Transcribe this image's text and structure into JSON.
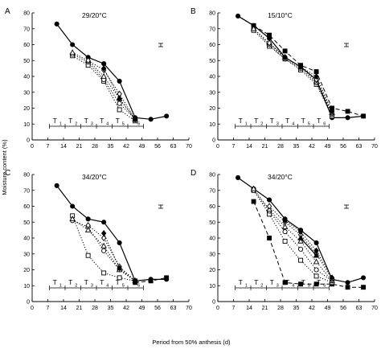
{
  "figure": {
    "ylabel": "Moisture content (%)",
    "xlabel": "Period from 50% anthesis (d)"
  },
  "treatment_labels": [
    "T",
    "T",
    "T",
    "T",
    "T",
    "T"
  ],
  "treatment_subscripts": [
    "1",
    "2",
    "3",
    "4",
    "5",
    "6"
  ],
  "chart_data": [
    {
      "type": "line",
      "panel_letter": "A",
      "title": "29/20°C",
      "xlabel": "Period from 50% anthesis (d)",
      "ylabel": "Moisture content (%)",
      "xlim": [
        0,
        70
      ],
      "ylim": [
        0,
        80
      ],
      "xticks": [
        0,
        7,
        14,
        21,
        28,
        35,
        42,
        49,
        56,
        63,
        70
      ],
      "yticks": [
        0,
        10,
        20,
        30,
        40,
        50,
        60,
        70,
        80
      ],
      "series": [
        {
          "style": "solid-filled-circle",
          "x": [
            11,
            18,
            25,
            32,
            39,
            46,
            53,
            60
          ],
          "y": [
            73,
            60,
            52,
            48,
            37,
            14,
            13,
            15
          ]
        },
        {
          "style": "dotted-open-square",
          "x": [
            18,
            25,
            32,
            39,
            46
          ],
          "y": [
            53,
            47,
            37,
            19,
            12
          ]
        },
        {
          "style": "dotted-open-circle",
          "x": [
            18,
            25,
            32,
            39,
            46
          ],
          "y": [
            54,
            49,
            38,
            23,
            13
          ]
        },
        {
          "style": "dotted-open-triangle",
          "x": [
            18,
            25,
            32,
            39,
            46
          ],
          "y": [
            55,
            50,
            40,
            26,
            13
          ]
        },
        {
          "style": "dotted-open-diamond",
          "x": [
            25,
            32,
            39,
            46
          ],
          "y": [
            50,
            44,
            29,
            13
          ]
        },
        {
          "style": "dotted-filled-diamond",
          "x": [
            32,
            39,
            46
          ],
          "y": [
            45,
            26,
            13
          ]
        },
        {
          "style": "dashed-filled-square",
          "x": [
            46
          ],
          "y": [
            13
          ]
        }
      ]
    },
    {
      "type": "line",
      "panel_letter": "B",
      "title": "15/10°C",
      "xlim": [
        0,
        70
      ],
      "ylim": [
        0,
        80
      ],
      "xticks": [
        0,
        7,
        14,
        21,
        28,
        35,
        42,
        49,
        56,
        63,
        70
      ],
      "yticks": [
        0,
        10,
        20,
        30,
        40,
        50,
        60,
        70,
        80
      ],
      "series": [
        {
          "style": "solid-filled-circle",
          "x": [
            9,
            16,
            23,
            30,
            37,
            44,
            51,
            58,
            65
          ],
          "y": [
            78,
            72,
            64,
            52,
            46,
            38,
            14,
            14,
            15
          ]
        },
        {
          "style": "dashed-filled-square",
          "x": [
            16,
            23,
            30,
            37,
            44,
            51,
            58,
            65
          ],
          "y": [
            72,
            66,
            56,
            47,
            43,
            20,
            18,
            15
          ]
        },
        {
          "style": "dotted-open-square",
          "x": [
            16,
            23,
            30,
            37,
            44,
            51
          ],
          "y": [
            69,
            59,
            51,
            44,
            35,
            15
          ]
        },
        {
          "style": "dotted-open-circle",
          "x": [
            16,
            23,
            30,
            37,
            44,
            51
          ],
          "y": [
            70,
            60,
            51,
            45,
            36,
            16
          ]
        },
        {
          "style": "dotted-open-triangle",
          "x": [
            16,
            23,
            30,
            37,
            44,
            51
          ],
          "y": [
            70,
            61,
            52,
            46,
            37,
            17
          ]
        },
        {
          "style": "dotted-open-diamond",
          "x": [
            23,
            30,
            37,
            44,
            51
          ],
          "y": [
            61,
            52,
            46,
            38,
            17
          ]
        },
        {
          "style": "dotted-filled-diamond",
          "x": [
            30,
            37,
            44,
            51
          ],
          "y": [
            52,
            46,
            40,
            18
          ]
        }
      ]
    },
    {
      "type": "line",
      "panel_letter": "C",
      "title": "34/20°C",
      "xlim": [
        0,
        70
      ],
      "ylim": [
        0,
        80
      ],
      "xticks": [
        0,
        7,
        14,
        21,
        28,
        35,
        42,
        49,
        56,
        63,
        70
      ],
      "yticks": [
        0,
        10,
        20,
        30,
        40,
        50,
        60,
        70,
        80
      ],
      "series": [
        {
          "style": "solid-filled-circle",
          "x": [
            11,
            18,
            25,
            32,
            39,
            46,
            53,
            60
          ],
          "y": [
            73,
            60,
            52,
            50,
            37,
            13,
            14,
            14
          ]
        },
        {
          "style": "dotted-open-square",
          "x": [
            18,
            25,
            32,
            39,
            46
          ],
          "y": [
            54,
            29,
            18,
            15,
            13
          ]
        },
        {
          "style": "dotted-open-circle",
          "x": [
            18,
            25,
            32,
            39,
            46
          ],
          "y": [
            51,
            47,
            32,
            20,
            13
          ]
        },
        {
          "style": "dotted-open-triangle",
          "x": [
            18,
            25,
            32,
            39,
            46
          ],
          "y": [
            52,
            45,
            35,
            20,
            13
          ]
        },
        {
          "style": "dotted-open-diamond",
          "x": [
            25,
            32,
            39,
            46
          ],
          "y": [
            48,
            40,
            22,
            13
          ]
        },
        {
          "style": "dotted-filled-diamond",
          "x": [
            32,
            39,
            46
          ],
          "y": [
            43,
            21,
            13
          ]
        },
        {
          "style": "dashed-filled-square",
          "x": [
            46,
            53,
            60
          ],
          "y": [
            12,
            13,
            15
          ]
        }
      ]
    },
    {
      "type": "line",
      "panel_letter": "D",
      "title": "34/20°C",
      "xlim": [
        0,
        70
      ],
      "ylim": [
        0,
        80
      ],
      "xticks": [
        0,
        7,
        14,
        21,
        28,
        35,
        42,
        49,
        56,
        63,
        70
      ],
      "yticks": [
        0,
        10,
        20,
        30,
        40,
        50,
        60,
        70,
        80
      ],
      "series": [
        {
          "style": "solid-filled-circle",
          "x": [
            9,
            16,
            23,
            30,
            37,
            44,
            51,
            58,
            65
          ],
          "y": [
            78,
            71,
            64,
            52,
            45,
            37,
            14,
            12,
            15
          ]
        },
        {
          "style": "dashed-filled-square",
          "x": [
            16,
            23,
            30,
            37,
            44,
            51,
            58,
            65
          ],
          "y": [
            63,
            40,
            12,
            11,
            11,
            11,
            9,
            9
          ]
        },
        {
          "style": "dotted-open-square",
          "x": [
            16,
            23,
            30,
            37,
            44,
            51
          ],
          "y": [
            70,
            55,
            38,
            26,
            16,
            12
          ]
        },
        {
          "style": "dotted-open-circle",
          "x": [
            16,
            23,
            30,
            37,
            44,
            51
          ],
          "y": [
            70,
            57,
            44,
            33,
            20,
            13
          ]
        },
        {
          "style": "dotted-open-triangle",
          "x": [
            16,
            23,
            30,
            37,
            44,
            51
          ],
          "y": [
            71,
            58,
            47,
            38,
            25,
            13
          ]
        },
        {
          "style": "dotted-open-diamond",
          "x": [
            23,
            30,
            37,
            44,
            51
          ],
          "y": [
            60,
            50,
            42,
            30,
            14
          ]
        },
        {
          "style": "dotted-filled-diamond",
          "x": [
            30,
            37,
            44,
            51
          ],
          "y": [
            51,
            44,
            32,
            15
          ]
        },
        {
          "style": "solid-filled-triangle",
          "x": [
            37,
            44
          ],
          "y": [
            40,
            29
          ]
        }
      ]
    }
  ]
}
